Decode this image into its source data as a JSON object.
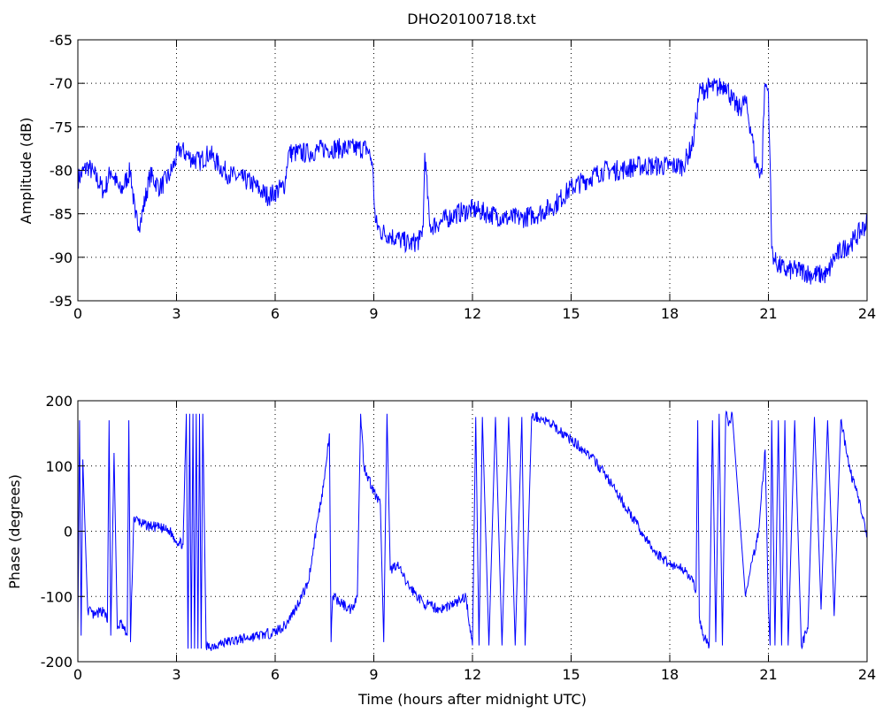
{
  "figure": {
    "title": "DHO20100718.txt",
    "xlabel": "Time (hours after midnight UTC)"
  },
  "chart_data": [
    {
      "type": "line",
      "title": "DHO20100718.txt",
      "xlabel": "",
      "ylabel": "Amplitude (dB)",
      "xlim": [
        0,
        24
      ],
      "ylim": [
        -95,
        -65
      ],
      "xticks": [
        0,
        3,
        6,
        9,
        12,
        15,
        18,
        21,
        24
      ],
      "yticks": [
        -95,
        -90,
        -85,
        -80,
        -75,
        -70,
        -65
      ],
      "grid": true,
      "color": "#0000ff",
      "noise": 1.2,
      "series": [
        {
          "x": [
            0,
            0.3,
            0.5,
            0.8,
            1.0,
            1.3,
            1.6,
            1.75,
            1.9,
            2.2,
            2.5,
            2.8,
            3.1,
            3.4,
            3.7,
            4.0,
            4.3,
            4.6,
            5.0,
            5.3,
            5.6,
            5.8,
            6.0,
            6.2,
            6.3,
            6.4,
            6.6,
            7.0,
            7.5,
            8.0,
            8.5,
            8.8,
            8.95,
            9.05,
            9.2,
            9.5,
            9.8,
            10.1,
            10.4,
            10.5,
            10.55,
            10.7,
            11.0,
            11.5,
            12.0,
            12.5,
            13.0,
            13.5,
            14.0,
            14.5,
            15.0,
            15.5,
            16.0,
            16.5,
            17.0,
            17.5,
            18.0,
            18.4,
            18.7,
            18.8,
            18.9,
            19.2,
            19.5,
            19.7,
            19.9,
            20.1,
            20.3,
            20.5,
            20.6,
            20.8,
            20.85,
            20.9,
            21.0,
            21.05,
            21.1,
            21.2,
            21.5,
            22.0,
            22.3,
            22.6,
            22.8,
            23.0,
            23.3,
            23.6,
            24.0
          ],
          "values": [
            -81,
            -79.5,
            -80.5,
            -82.5,
            -80,
            -82.5,
            -80,
            -85.5,
            -86,
            -80.5,
            -82,
            -80.5,
            -77.5,
            -78.5,
            -79,
            -78,
            -79.5,
            -80.5,
            -81,
            -81.5,
            -82.5,
            -83,
            -82.5,
            -82,
            -81.5,
            -78,
            -78,
            -78,
            -77.5,
            -77.5,
            -77.5,
            -77.5,
            -79,
            -86,
            -87,
            -87.5,
            -88,
            -88.5,
            -88,
            -86.5,
            -78,
            -86.5,
            -86,
            -85,
            -84.5,
            -85,
            -85.5,
            -85.5,
            -85,
            -84,
            -82,
            -81,
            -80,
            -80,
            -79.5,
            -79.5,
            -79.5,
            -79.5,
            -77,
            -74,
            -71,
            -70.5,
            -70.5,
            -70,
            -72,
            -73,
            -72,
            -76,
            -79,
            -80.5,
            -74,
            -70,
            -71,
            -79,
            -89,
            -90.5,
            -91.5,
            -91.5,
            -92,
            -92,
            -92,
            -90,
            -89,
            -88,
            -86
          ]
        }
      ]
    },
    {
      "type": "line",
      "title": "",
      "xlabel": "Time (hours after midnight UTC)",
      "ylabel": "Phase (degrees)",
      "xlim": [
        0,
        24
      ],
      "ylim": [
        -200,
        200
      ],
      "xticks": [
        0,
        3,
        6,
        9,
        12,
        15,
        18,
        21,
        24
      ],
      "yticks": [
        -200,
        -100,
        0,
        100,
        200
      ],
      "grid": true,
      "color": "#0000ff",
      "noise": 8,
      "series": [
        {
          "x": [
            0,
            0.05,
            0.1,
            0.15,
            0.3,
            0.5,
            0.8,
            0.9,
            0.95,
            1.0,
            1.1,
            1.2,
            1.3,
            1.5,
            1.55,
            1.6,
            1.7,
            2.0,
            2.5,
            2.8,
            3.0,
            3.2,
            3.3,
            3.35,
            3.4,
            3.45,
            3.5,
            3.55,
            3.6,
            3.65,
            3.7,
            3.75,
            3.8,
            3.9,
            4.5,
            5.0,
            5.5,
            6.0,
            6.1,
            6.3,
            6.6,
            7.0,
            7.3,
            7.5,
            7.65,
            7.7,
            7.75,
            8.0,
            8.3,
            8.5,
            8.6,
            8.7,
            9.0,
            9.2,
            9.3,
            9.4,
            9.5,
            9.7,
            10.0,
            10.5,
            11.0,
            11.5,
            11.8,
            12.0,
            12.1,
            12.2,
            12.3,
            12.5,
            12.7,
            12.9,
            13.1,
            13.3,
            13.5,
            13.6,
            13.8,
            14.0,
            14.5,
            15.0,
            15.5,
            16.0,
            16.5,
            17.0,
            17.5,
            18.0,
            18.5,
            18.8,
            18.85,
            18.9,
            19.0,
            19.2,
            19.3,
            19.4,
            19.5,
            19.6,
            19.7,
            19.75,
            19.8,
            19.9,
            20.3,
            20.7,
            20.9,
            21.0,
            21.05,
            21.1,
            21.2,
            21.3,
            21.4,
            21.5,
            21.6,
            21.8,
            22.0,
            22.2,
            22.4,
            22.6,
            22.8,
            23.0,
            23.2,
            23.5,
            23.8,
            24.0
          ],
          "values": [
            -150,
            170,
            -160,
            110,
            -120,
            -130,
            -120,
            -140,
            170,
            -160,
            120,
            -150,
            -140,
            -160,
            170,
            -170,
            20,
            10,
            5,
            0,
            -15,
            -20,
            180,
            -180,
            180,
            -180,
            180,
            -180,
            180,
            -180,
            180,
            -180,
            180,
            -178,
            -170,
            -165,
            -160,
            -155,
            -150,
            -145,
            -120,
            -80,
            20,
            80,
            150,
            -170,
            -100,
            -110,
            -120,
            -100,
            180,
            100,
            60,
            40,
            -170,
            180,
            -60,
            -50,
            -80,
            -110,
            -120,
            -110,
            -100,
            -175,
            175,
            -175,
            175,
            -175,
            175,
            -175,
            175,
            -175,
            175,
            -175,
            175,
            175,
            160,
            140,
            120,
            90,
            50,
            10,
            -30,
            -50,
            -60,
            -90,
            170,
            -130,
            -160,
            -175,
            170,
            -170,
            180,
            -175,
            178,
            175,
            165,
            180,
            -100,
            0,
            125,
            -120,
            -175,
            170,
            -175,
            170,
            -175,
            170,
            -175,
            170,
            -175,
            -150,
            175,
            -120,
            170,
            -130,
            170,
            90,
            40,
            -10
          ]
        }
      ]
    }
  ]
}
